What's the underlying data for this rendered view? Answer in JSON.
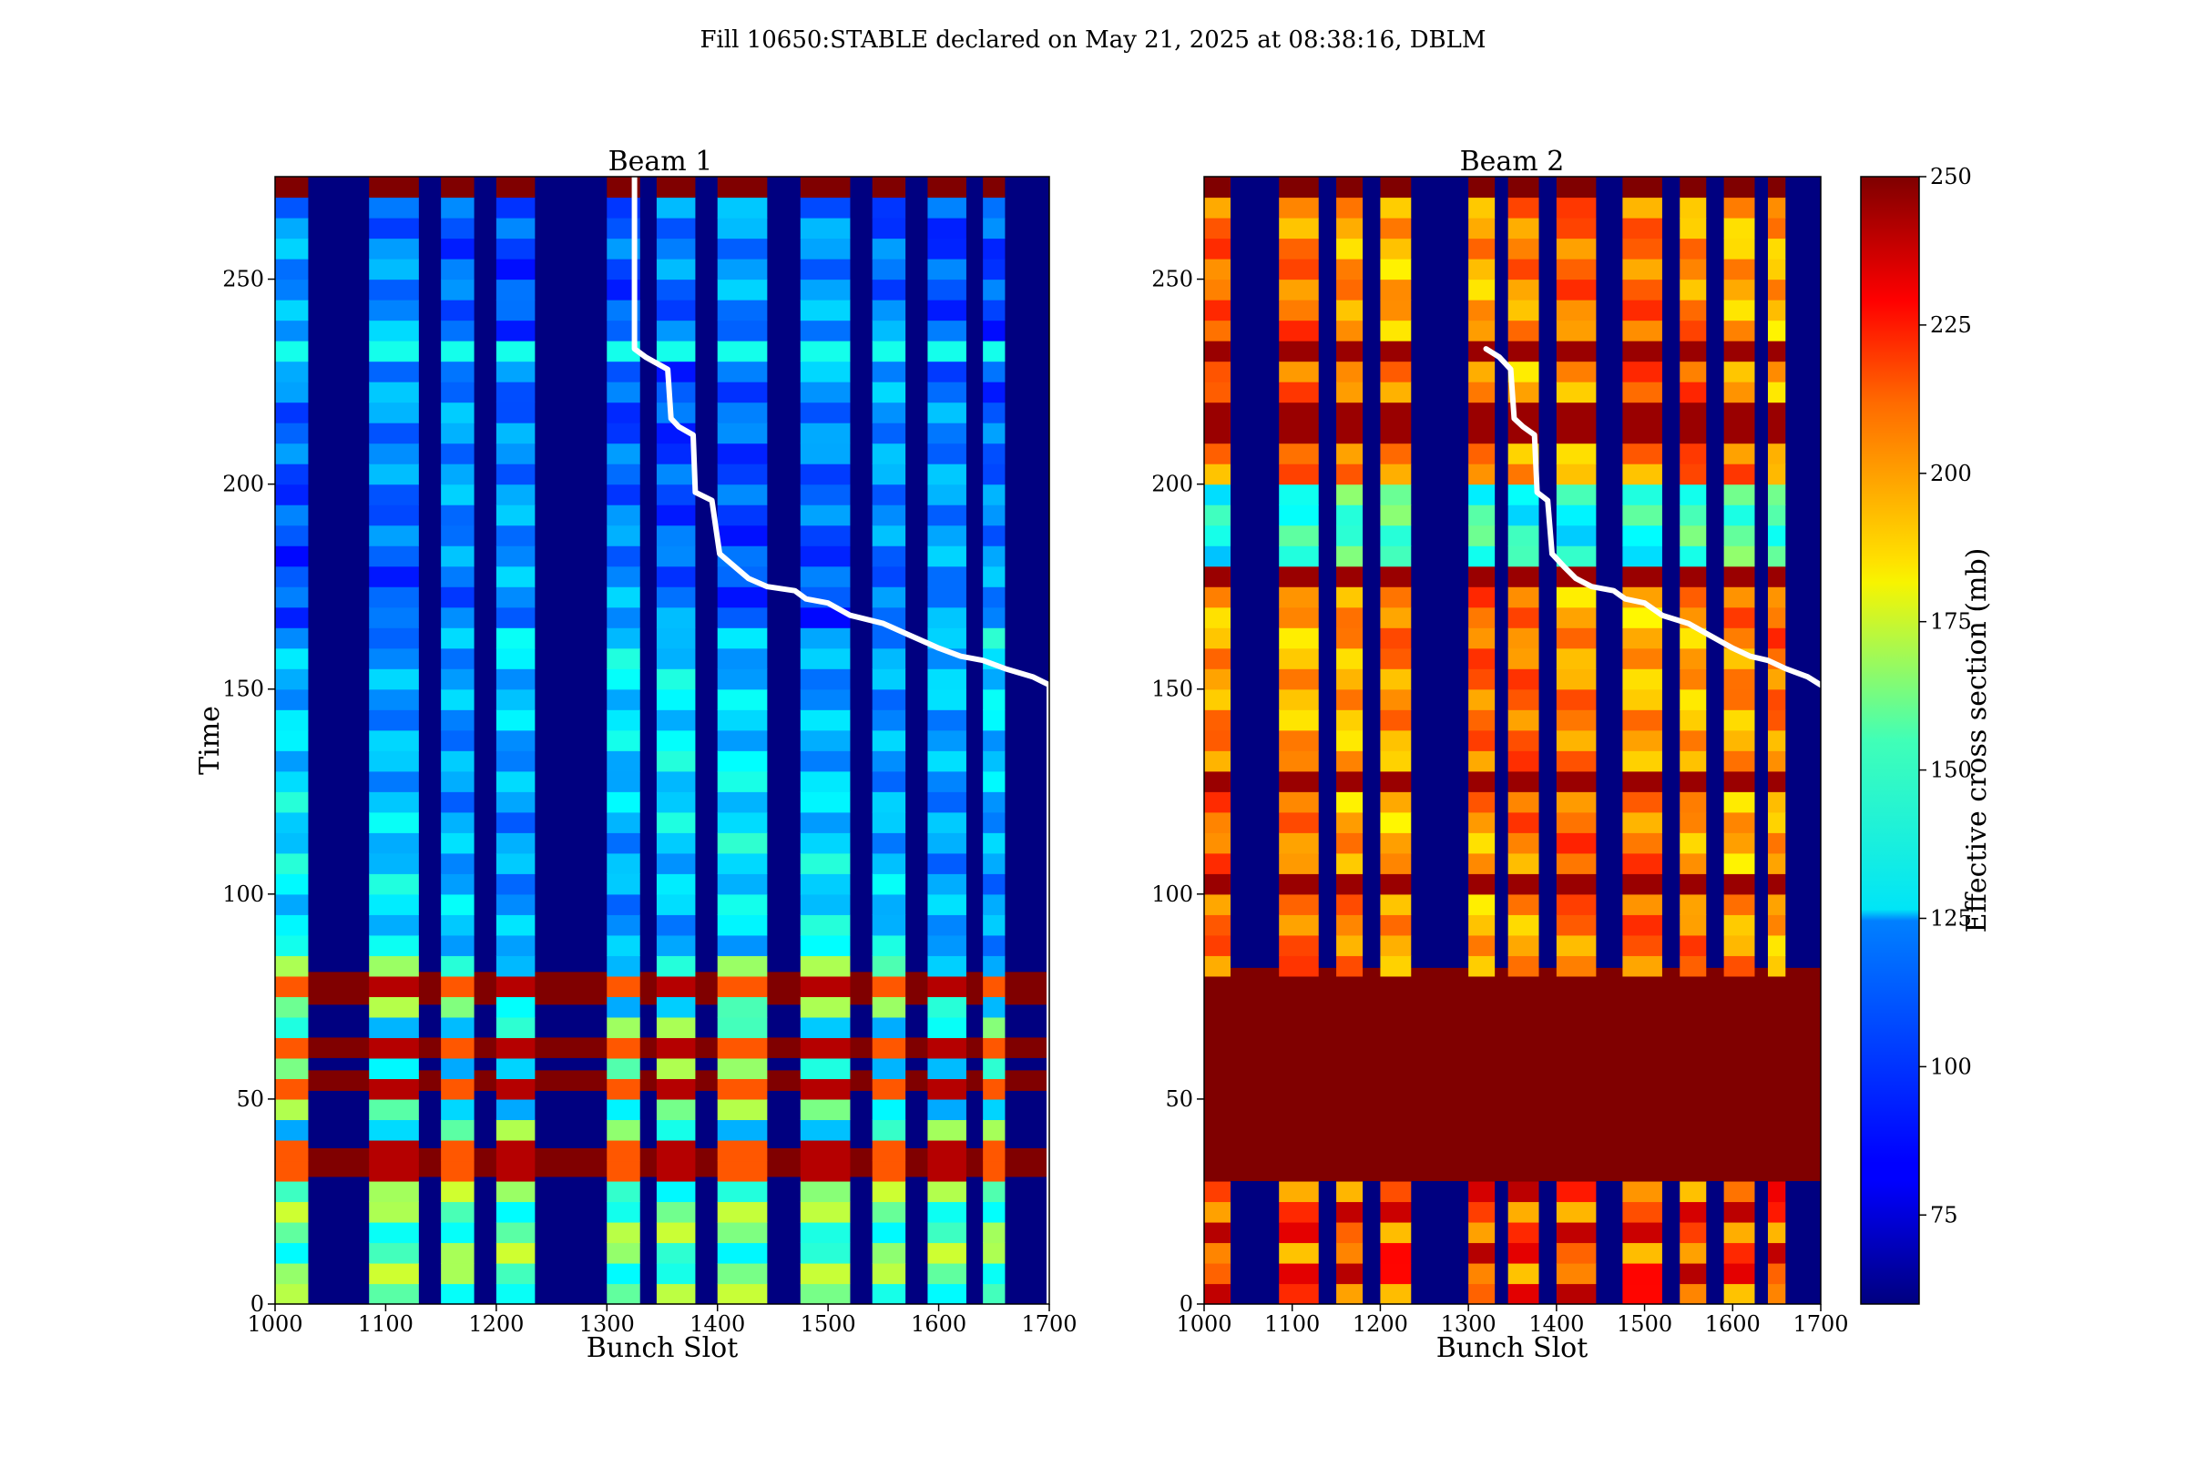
{
  "figure": {
    "suptitle": "Fill 10650:STABLE declared on May 21, 2025 at 08:38:16, DBLM"
  },
  "chart_data": {
    "type": "heatmap",
    "x_range": [
      1000,
      1700
    ],
    "y_range": [
      0,
      275
    ],
    "x_ticks": [
      1000,
      1100,
      1200,
      1300,
      1400,
      1500,
      1600,
      1700
    ],
    "y_ticks": [
      0,
      50,
      100,
      150,
      200,
      250
    ],
    "trains": [
      [
        1000,
        1030
      ],
      [
        1085,
        1130
      ],
      [
        1150,
        1180
      ],
      [
        1200,
        1235
      ],
      [
        1300,
        1330
      ],
      [
        1345,
        1380
      ],
      [
        1400,
        1445
      ],
      [
        1475,
        1520
      ],
      [
        1540,
        1570
      ],
      [
        1590,
        1625
      ],
      [
        1640,
        1660
      ]
    ],
    "colorbar": {
      "label": "Effective cross section (mb)",
      "range": [
        60,
        250
      ],
      "ticks": [
        75,
        100,
        125,
        150,
        175,
        200,
        225,
        250
      ],
      "colormap": "jet"
    },
    "panels": [
      {
        "title": "Beam 1",
        "xlabel": "Bunch Slot",
        "ylabel": "Time",
        "base_level": 105,
        "high_loss_time_bands": [
          [
            31,
            38
          ],
          [
            52,
            57
          ],
          [
            60,
            65
          ],
          [
            73,
            81
          ]
        ],
        "overlay_line": {
          "color": "#ffffff",
          "points": [
            [
              1325,
              275
            ],
            [
              1325,
              233
            ],
            [
              1335,
              231
            ],
            [
              1355,
              228
            ],
            [
              1358,
              216
            ],
            [
              1365,
              214
            ],
            [
              1378,
              212
            ],
            [
              1380,
              198
            ],
            [
              1395,
              196
            ],
            [
              1402,
              183
            ],
            [
              1415,
              180
            ],
            [
              1428,
              177
            ],
            [
              1445,
              175
            ],
            [
              1470,
              174
            ],
            [
              1480,
              172
            ],
            [
              1500,
              171
            ],
            [
              1520,
              168
            ],
            [
              1550,
              166
            ],
            [
              1575,
              163
            ],
            [
              1600,
              160
            ],
            [
              1620,
              158
            ],
            [
              1640,
              157
            ],
            [
              1660,
              155
            ],
            [
              1685,
              153
            ],
            [
              1700,
              151
            ],
            [
              1700,
              0
            ]
          ]
        }
      },
      {
        "title": "Beam 2",
        "xlabel": "Bunch Slot",
        "ylabel": "",
        "base_level": 200,
        "high_loss_time_bands": [
          [
            30,
            82
          ]
        ],
        "overlay_line": {
          "color": "#ffffff",
          "points": [
            [
              1320,
              233
            ],
            [
              1335,
              231
            ],
            [
              1348,
              228
            ],
            [
              1352,
              216
            ],
            [
              1362,
              214
            ],
            [
              1375,
              212
            ],
            [
              1378,
              198
            ],
            [
              1390,
              196
            ],
            [
              1395,
              183
            ],
            [
              1408,
              180
            ],
            [
              1422,
              177
            ],
            [
              1440,
              175
            ],
            [
              1465,
              174
            ],
            [
              1478,
              172
            ],
            [
              1500,
              171
            ],
            [
              1520,
              168
            ],
            [
              1550,
              166
            ],
            [
              1575,
              163
            ],
            [
              1600,
              160
            ],
            [
              1620,
              158
            ],
            [
              1640,
              157
            ],
            [
              1660,
              155
            ],
            [
              1685,
              153
            ],
            [
              1700,
              151
            ]
          ]
        }
      }
    ]
  }
}
